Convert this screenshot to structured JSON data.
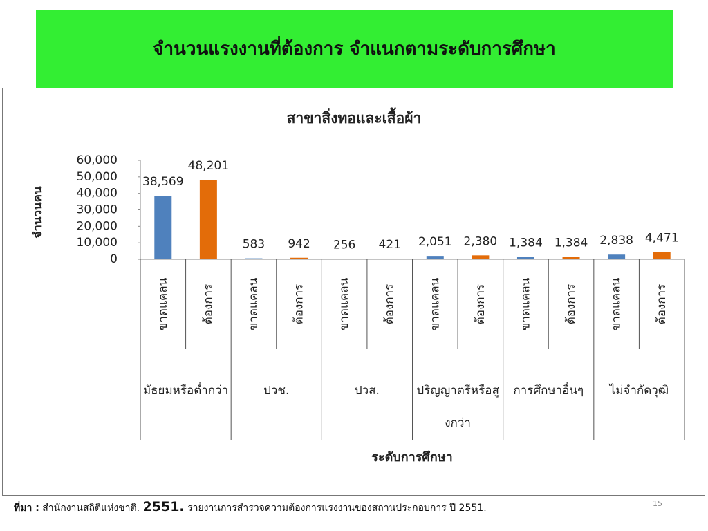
{
  "header": {
    "title": "จำนวนแรงงานที่ต้องการ จำแนกตามระดับการศึกษา"
  },
  "chart_data": {
    "type": "bar",
    "title": "สาขาสิ่งทอและเสื้อผ้า",
    "y_label": "จำนวนคน",
    "x_label": "ระดับการศึกษา",
    "categories": [
      "ขาดแคลน",
      "ต้องการ",
      "ขาดแคลน",
      "ต้องการ",
      "ขาดแคลน",
      "ต้องการ",
      "ขาดแคลน",
      "ต้องการ",
      "ขาดแคลน",
      "ต้องการ",
      "ขาดแคลน",
      "ต้องการ"
    ],
    "groups": [
      "มัธยมหรือต่ำกว่า",
      "ปวช.",
      "ปวส.",
      "ปริญญาตรีหรือสูงกว่า",
      "การศึกษาอื่นๆ",
      "ไม่จำกัดวุฒิ"
    ],
    "values": [
      38569,
      48201,
      583,
      942,
      256,
      421,
      2051,
      2380,
      1384,
      1384,
      2838,
      4471
    ],
    "value_labels": [
      "38,569",
      "48,201",
      "583",
      "942",
      "256",
      "421",
      "2,051",
      "2,380",
      "1,384",
      "1,384",
      "2,838",
      "4,471"
    ],
    "colors": [
      "#4f81bd",
      "#e36c09",
      "#4f81bd",
      "#e36c09",
      "#4f81bd",
      "#e36c09",
      "#4f81bd",
      "#e36c09",
      "#4f81bd",
      "#e36c09",
      "#4f81bd",
      "#e36c09"
    ],
    "ylim": [
      0,
      60000
    ],
    "yticks": [
      0,
      {
        "value": 10000,
        "label": "10,000"
      },
      {
        "value": 20000,
        "label": "20,000"
      },
      {
        "value": 30000,
        "label": "30,000"
      },
      {
        "value": 40000,
        "label": "40,000"
      },
      {
        "value": 50000,
        "label": "50,000"
      },
      {
        "value": 60000,
        "label": "60,000"
      }
    ],
    "grid": false
  },
  "footnote": {
    "parts": [
      "ที่มา :",
      "สำนักงานสถิติแห่งชาติ.",
      "2551.",
      "รายงานการสำรวจความต้องการแรงงานของสถานประกอบการ ปี 2551."
    ]
  },
  "page_number": "15"
}
